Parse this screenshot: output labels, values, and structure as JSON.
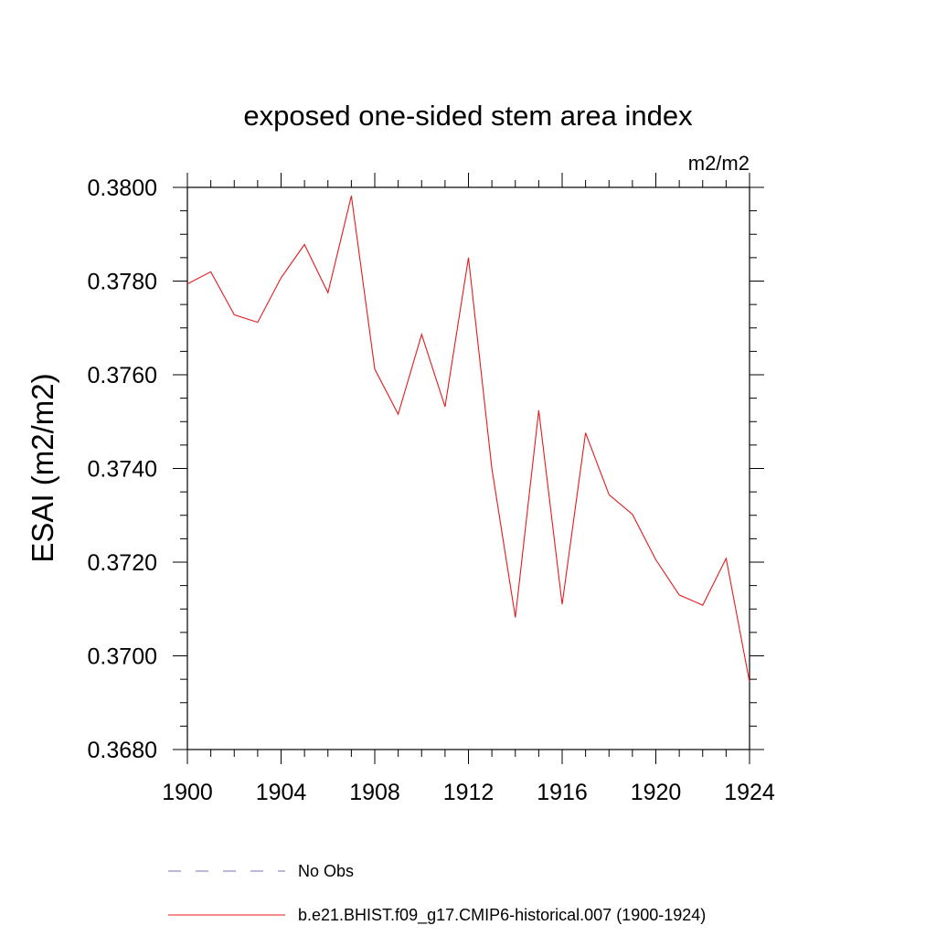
{
  "chart_data": {
    "type": "line",
    "title": "exposed one-sided stem area index",
    "units": "m2/m2",
    "ylabel": "ESAI  (m2/m2)",
    "xlabel": "",
    "xlim": [
      1900,
      1924
    ],
    "ylim": [
      0.368,
      0.38
    ],
    "xticks": [
      "1900",
      "1904",
      "1908",
      "1912",
      "1916",
      "1920",
      "1924"
    ],
    "yticks": [
      "0.3800",
      "0.3780",
      "0.3760",
      "0.3740",
      "0.3720",
      "0.3700",
      "0.3680"
    ],
    "grid": false,
    "legend_placement": "bottom",
    "series": [
      {
        "name": "b.e21.BHIST.f09_g17.CMIP6-historical.007 (1900-1924)",
        "color": "#e8191d",
        "style": "solid",
        "x": [
          1900,
          1901,
          1902,
          1903,
          1904,
          1905,
          1906,
          1907,
          1908,
          1909,
          1910,
          1911,
          1912,
          1913,
          1914,
          1915,
          1916,
          1917,
          1918,
          1919,
          1920,
          1921,
          1922,
          1923,
          1924
        ],
        "values": [
          0.37794,
          0.3782,
          0.37728,
          0.37712,
          0.37807,
          0.37878,
          0.37775,
          0.37982,
          0.37612,
          0.37516,
          0.37686,
          0.37532,
          0.3785,
          0.374,
          0.37082,
          0.37524,
          0.3711,
          0.37476,
          0.37344,
          0.37302,
          0.37205,
          0.3713,
          0.37108,
          0.37208,
          0.36944
        ]
      }
    ],
    "legend": [
      {
        "label": "No Obs",
        "color": "#7b6fb5",
        "style": "dashed"
      },
      {
        "label": "b.e21.BHIST.f09_g17.CMIP6-historical.007 (1900-1924)",
        "color": "#e8191d",
        "style": "solid"
      }
    ]
  }
}
